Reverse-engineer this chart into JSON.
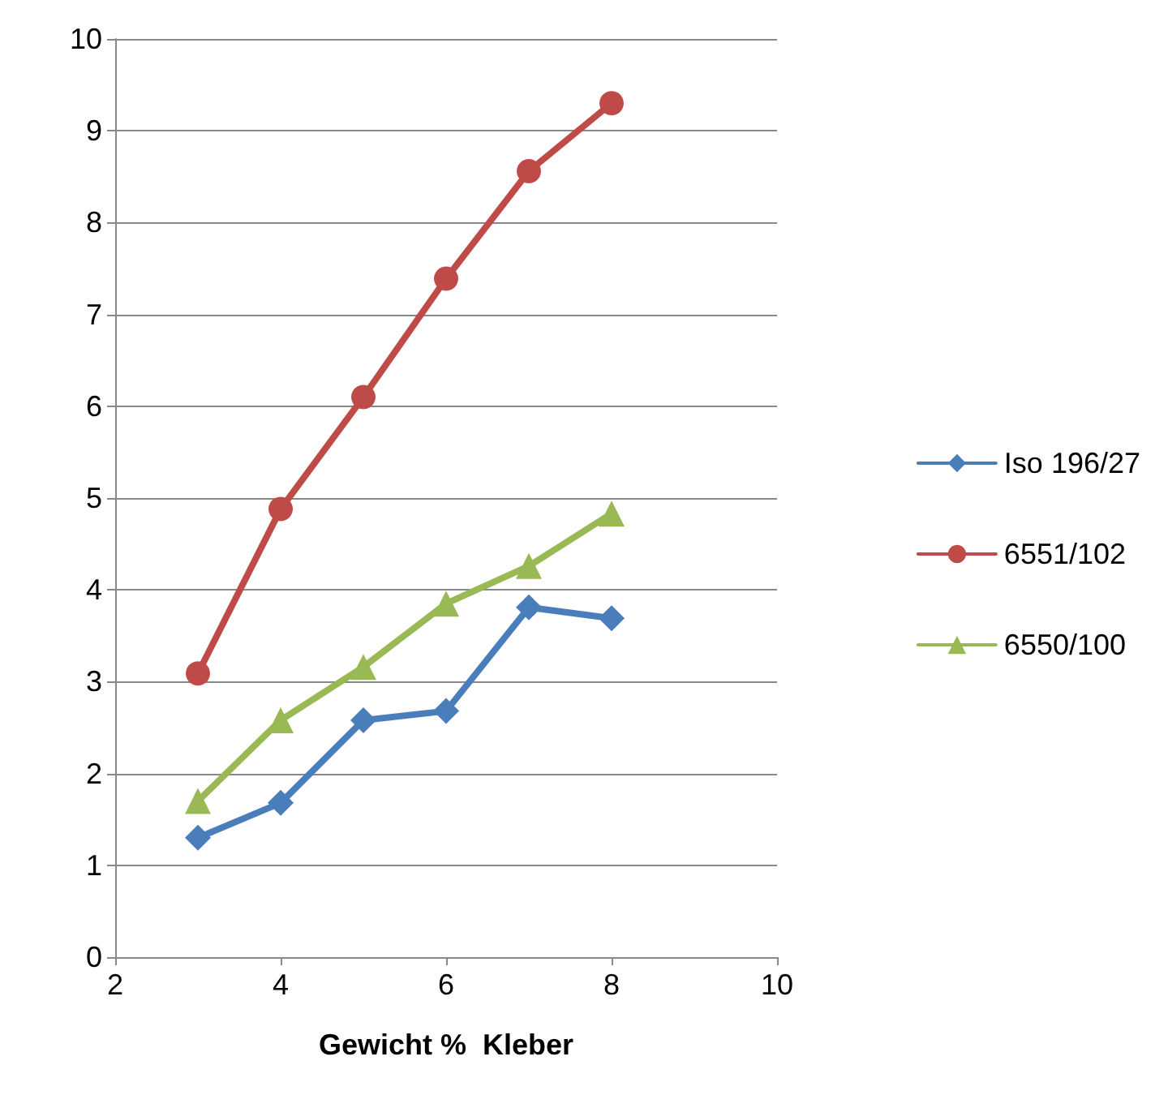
{
  "chart_data": {
    "type": "line",
    "xlabel": "Gewicht %  Kleber",
    "x": [
      3,
      4,
      5,
      6,
      7,
      8
    ],
    "series": [
      {
        "name": "Iso 196/27",
        "color": "#4a7ebb",
        "marker": "diamond",
        "values": [
          1.3,
          1.68,
          2.58,
          2.68,
          3.81,
          3.69
        ]
      },
      {
        "name": "6551/102",
        "color": "#be4b48",
        "marker": "circle",
        "values": [
          3.09,
          4.88,
          6.1,
          7.39,
          8.56,
          9.3
        ]
      },
      {
        "name": "6550/100",
        "color": "#98b954",
        "marker": "triangle",
        "values": [
          1.7,
          2.58,
          3.16,
          3.85,
          4.26,
          4.83
        ]
      }
    ],
    "xlim": [
      2,
      10
    ],
    "xticks": [
      2,
      4,
      6,
      8,
      10
    ],
    "ylim": [
      0,
      10
    ],
    "yticks": [
      0,
      1,
      2,
      3,
      4,
      5,
      6,
      7,
      8,
      9,
      10
    ],
    "grid": "y",
    "legend": "right",
    "line_style": "solid"
  }
}
